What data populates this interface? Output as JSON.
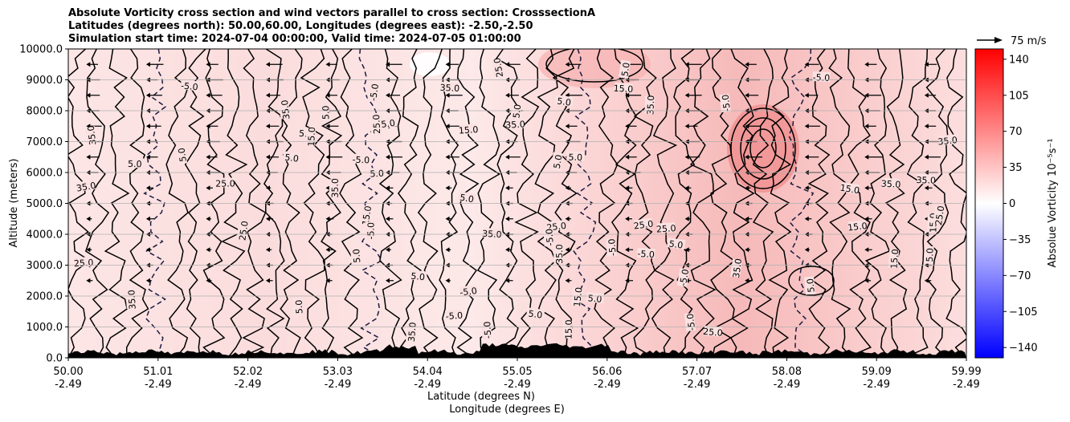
{
  "chart_data": {
    "type": "heatmap",
    "title_lines": [
      "Absolute Vorticity cross section and wind vectors parallel to cross section: CrosssectionA",
      "Latitudes (degrees north): 50.00,60.00, Longitudes (degrees east): -2.50,-2.50",
      "Simulation start time: 2024-07-04 00:00:00, Valid time: 2024-07-05 01:00:00"
    ],
    "xlabel": "Latitude (degrees N)",
    "xlabel2": "Longitude (degrees E)",
    "ylabel": "Altitude (meters)",
    "x_ticks": [
      "50.00",
      "51.01",
      "52.02",
      "53.03",
      "54.04",
      "55.05",
      "56.06",
      "57.07",
      "58.08",
      "59.09",
      "59.99"
    ],
    "x_ticks2": [
      "-2.49",
      "-2.49",
      "-2.49",
      "-2.49",
      "-2.49",
      "-2.49",
      "-2.49",
      "-2.49",
      "-2.49",
      "-2.49",
      "-2.49"
    ],
    "y_ticks": [
      "0.0",
      "1000.0",
      "2000.0",
      "3000.0",
      "4000.0",
      "5000.0",
      "6000.0",
      "7000.0",
      "8000.0",
      "9000.0",
      "10000.0"
    ],
    "xlim": [
      50.0,
      59.99
    ],
    "ylim": [
      0,
      10000
    ],
    "grid": "horizontal",
    "colorbar": {
      "label": "Absolue Vorticity 10⁻⁵s⁻¹",
      "ticks": [
        "140",
        "105",
        "70",
        "35",
        "0",
        "−35",
        "−70",
        "−105",
        "−140"
      ],
      "range": [
        -150,
        150
      ],
      "colormap": "bwr"
    },
    "quiver_key": "75 m/s",
    "contour_labels": [
      "5.0",
      "15.0",
      "25.0",
      "35.0",
      "-5.0"
    ],
    "vorticity_profile": [
      {
        "lat": 50.0,
        "level": 5
      },
      {
        "lat": 51.0,
        "level": 8
      },
      {
        "lat": 52.0,
        "level": 12
      },
      {
        "lat": 53.0,
        "level": 10
      },
      {
        "lat": 54.0,
        "level": 8
      },
      {
        "lat": 55.0,
        "level": 18
      },
      {
        "lat": 56.0,
        "level": 25
      },
      {
        "lat": 57.0,
        "level": 30
      },
      {
        "lat": 57.7,
        "level": 55
      },
      {
        "lat": 58.5,
        "level": 35
      },
      {
        "lat": 59.5,
        "level": 20
      },
      {
        "lat": 59.99,
        "level": 15
      }
    ],
    "colors": {
      "positive": "#ff0000",
      "negative": "#0000ff",
      "zero": "#ffffff",
      "contour": "#000000"
    }
  }
}
